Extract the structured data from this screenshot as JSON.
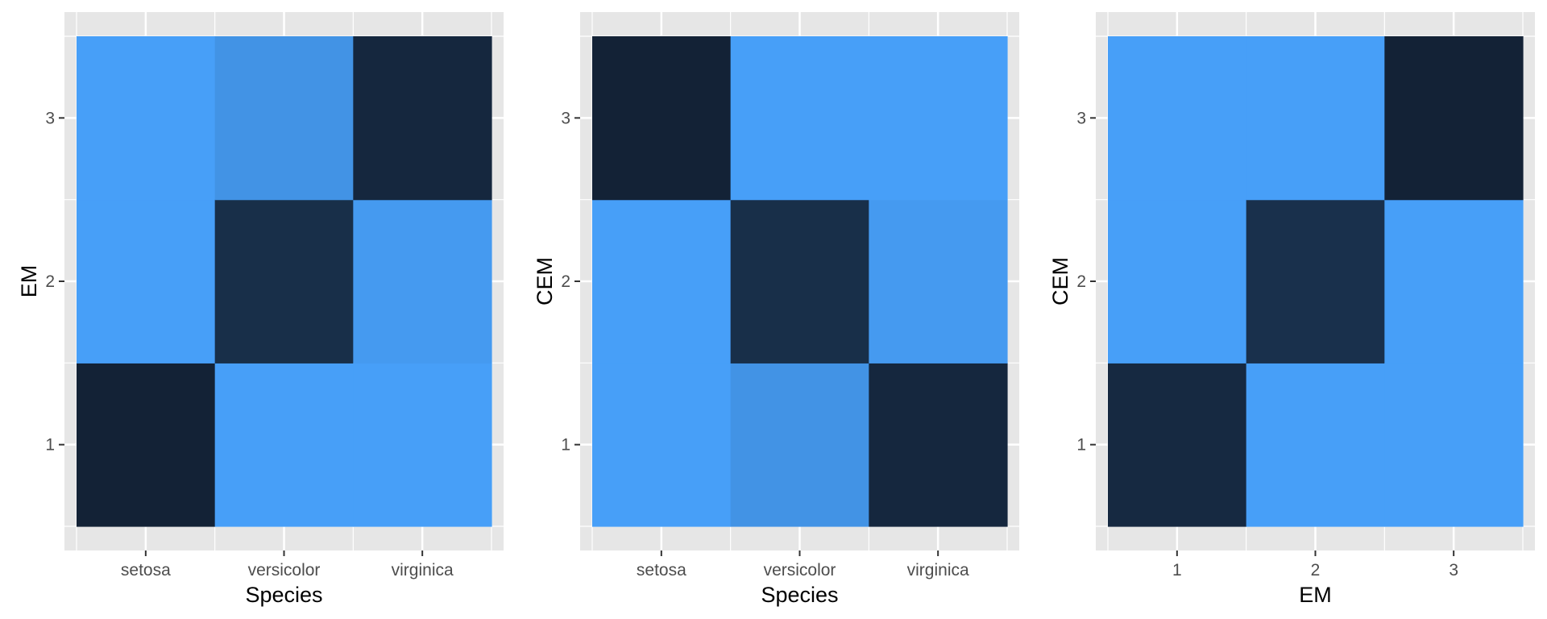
{
  "chart_data": [
    {
      "type": "heatmap",
      "xlabel": "Species",
      "ylabel": "EM",
      "x_categories": [
        "setosa",
        "versicolor",
        "virginica"
      ],
      "y_categories": [
        "1",
        "2",
        "3"
      ],
      "cells": [
        {
          "x": "setosa",
          "y": "1",
          "value": 50
        },
        {
          "x": "setosa",
          "y": "2",
          "value": 0
        },
        {
          "x": "setosa",
          "y": "3",
          "value": 0
        },
        {
          "x": "versicolor",
          "y": "1",
          "value": 0
        },
        {
          "x": "versicolor",
          "y": "2",
          "value": 45
        },
        {
          "x": "versicolor",
          "y": "3",
          "value": 5
        },
        {
          "x": "virginica",
          "y": "1",
          "value": 0
        },
        {
          "x": "virginica",
          "y": "2",
          "value": 2
        },
        {
          "x": "virginica",
          "y": "3",
          "value": 48
        }
      ],
      "grid": true
    },
    {
      "type": "heatmap",
      "xlabel": "Species",
      "ylabel": "CEM",
      "x_categories": [
        "setosa",
        "versicolor",
        "virginica"
      ],
      "y_categories": [
        "1",
        "2",
        "3"
      ],
      "cells": [
        {
          "x": "setosa",
          "y": "1",
          "value": 0
        },
        {
          "x": "setosa",
          "y": "2",
          "value": 0
        },
        {
          "x": "setosa",
          "y": "3",
          "value": 50
        },
        {
          "x": "versicolor",
          "y": "1",
          "value": 5
        },
        {
          "x": "versicolor",
          "y": "2",
          "value": 45
        },
        {
          "x": "versicolor",
          "y": "3",
          "value": 0
        },
        {
          "x": "virginica",
          "y": "1",
          "value": 48
        },
        {
          "x": "virginica",
          "y": "2",
          "value": 2
        },
        {
          "x": "virginica",
          "y": "3",
          "value": 0
        }
      ],
      "grid": true
    },
    {
      "type": "heatmap",
      "xlabel": "EM",
      "ylabel": "CEM",
      "x_categories": [
        "1",
        "2",
        "3"
      ],
      "y_categories": [
        "1",
        "2",
        "3"
      ],
      "cells": [
        {
          "x": "1",
          "y": "1",
          "value": 50
        },
        {
          "x": "1",
          "y": "2",
          "value": 0
        },
        {
          "x": "1",
          "y": "3",
          "value": 0
        },
        {
          "x": "2",
          "y": "1",
          "value": 0
        },
        {
          "x": "2",
          "y": "2",
          "value": 47
        },
        {
          "x": "2",
          "y": "3",
          "value": 0
        },
        {
          "x": "3",
          "y": "1",
          "value": 0
        },
        {
          "x": "3",
          "y": "2",
          "value": 0
        },
        {
          "x": "3",
          "y": "3",
          "value": 53
        }
      ],
      "grid": true
    }
  ],
  "colors": {
    "panel_background": "#e6e6e6",
    "grid_line": "#ffffff",
    "low": "#479ff8",
    "high": "#132236",
    "tick_label": "#4d4d4d",
    "tick_mark": "#333333",
    "axis_title": "#000000"
  }
}
